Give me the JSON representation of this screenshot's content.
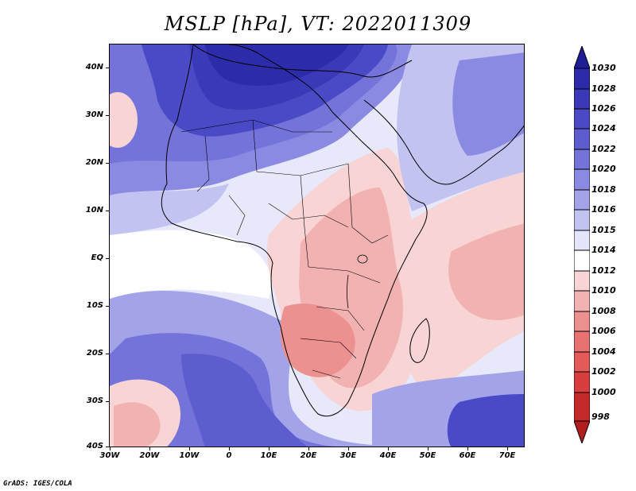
{
  "title": "MSLP [hPa], VT: 2022011309",
  "credit": "GrADS: IGES/COLA",
  "lat_labels": [
    "40N",
    "30N",
    "20N",
    "10N",
    "EQ",
    "10S",
    "20S",
    "30S",
    "40S"
  ],
  "lon_labels": [
    "30W",
    "20W",
    "10W",
    "0",
    "10E",
    "20E",
    "30E",
    "40E",
    "50E",
    "60E",
    "70E"
  ],
  "colorbar": {
    "labels": [
      "1030",
      "1028",
      "1026",
      "1024",
      "1022",
      "1020",
      "1018",
      "1016",
      "1015",
      "1014",
      "1012",
      "1010",
      "1008",
      "1006",
      "1004",
      "1002",
      "1000",
      "998"
    ],
    "colors": [
      "#1e1e96",
      "#2c2caa",
      "#3a3ab9",
      "#4a4ac6",
      "#5d5dd0",
      "#7373da",
      "#8a8ae2",
      "#a3a3ea",
      "#c3c3f2",
      "#e4e4fa",
      "#ffffff",
      "#f8d4d4",
      "#f2b2b2",
      "#ec9090",
      "#e87272",
      "#e45a5a",
      "#d83e3e",
      "#c42a2a",
      "#b01e1e"
    ]
  },
  "regions": [
    {
      "name": "north-africa-high",
      "level": 1026,
      "color": "#3a3ab9"
    },
    {
      "name": "atlantic-subtropical",
      "level": 1018,
      "color": "#8a8ae2"
    },
    {
      "name": "south-atlantic-high",
      "level": 1020,
      "color": "#7373da"
    },
    {
      "name": "central-africa-low",
      "level": 1010,
      "color": "#f2b2b2"
    },
    {
      "name": "southern-africa-low",
      "level": 1008,
      "color": "#ec9090"
    },
    {
      "name": "indian-ocean-low",
      "level": 1010,
      "color": "#f2b2b2"
    },
    {
      "name": "arabia-high",
      "level": 1018,
      "color": "#8a8ae2"
    },
    {
      "name": "south-indian-high",
      "level": 1024,
      "color": "#4a4ac6"
    }
  ]
}
